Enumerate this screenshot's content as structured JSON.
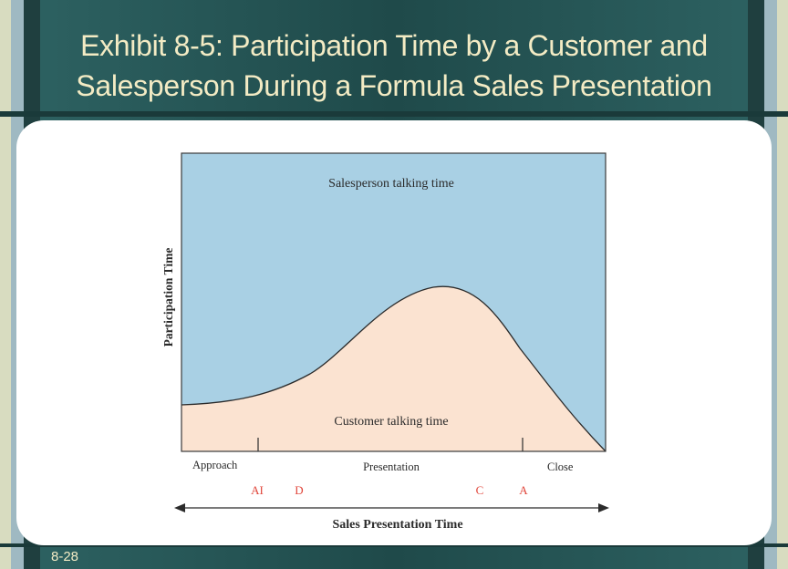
{
  "title": {
    "line1": "Exhibit 8-5: Participation Time by a Customer and",
    "line2": "Salesperson During a Formula Sales Presentation"
  },
  "slide_number": "8-28",
  "diagram": {
    "salesperson_label": "Salesperson talking time",
    "customer_label": "Customer talking time",
    "y_axis_label": "Participation Time",
    "x_axis_label": "Sales Presentation Time",
    "phases": [
      "Approach",
      "Presentation",
      "Close"
    ],
    "markers": [
      "AI",
      "D",
      "C",
      "A"
    ]
  },
  "colors": {
    "salesperson_area": "#a9d0e4",
    "customer_area": "#fbe3d1",
    "marker_text": "#e0453a",
    "title_text": "#f3ebc4"
  }
}
